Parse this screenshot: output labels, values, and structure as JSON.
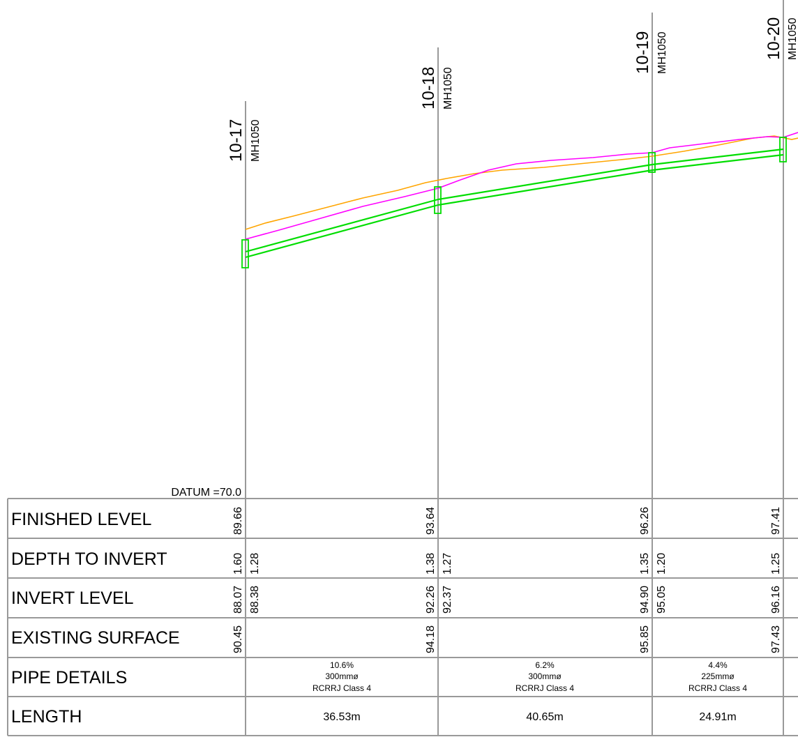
{
  "datum": "DATUM =70.0",
  "rows": {
    "finished": "FINISHED LEVEL",
    "depth": "DEPTH TO INVERT",
    "invert": "INVERT LEVEL",
    "existing": "EXISTING SURFACE",
    "pipe": "PIPE DETAILS",
    "length": "LENGTH"
  },
  "manholes": [
    {
      "id": "10-17",
      "type": "MH1050",
      "finished": "89.66",
      "depth_in": "1.60",
      "depth_out": "1.28",
      "invert_in": "88.07",
      "invert_out": "88.38",
      "existing": "90.45"
    },
    {
      "id": "10-18",
      "type": "MH1050",
      "finished": "93.64",
      "depth_in": "1.38",
      "depth_out": "1.27",
      "invert_in": "92.26",
      "invert_out": "92.37",
      "existing": "94.18"
    },
    {
      "id": "10-19",
      "type": "MH1050",
      "finished": "96.26",
      "depth_in": "1.35",
      "depth_out": "1.20",
      "invert_in": "94.90",
      "invert_out": "95.05",
      "existing": "95.85"
    },
    {
      "id": "10-20",
      "type": "MH1050",
      "finished": "97.41",
      "depth_in": "1.25",
      "depth_out": "",
      "invert_in": "96.16",
      "invert_out": "",
      "existing": "97.43"
    }
  ],
  "pipes": [
    {
      "grade": "10.6%",
      "size": "300mmø",
      "material": "RCRRJ Class 4",
      "length": "36.53m"
    },
    {
      "grade": "6.2%",
      "size": "300mmø",
      "material": "RCRRJ Class 4",
      "length": "40.65m"
    },
    {
      "grade": "4.4%",
      "size": "225mmø",
      "material": "RCRRJ Class 4",
      "length": "24.91m"
    }
  ],
  "colors": {
    "finished_line": "#ff00ff",
    "existing_line": "#ffa500",
    "pipe": "#00dd00",
    "grid": "#999999"
  }
}
